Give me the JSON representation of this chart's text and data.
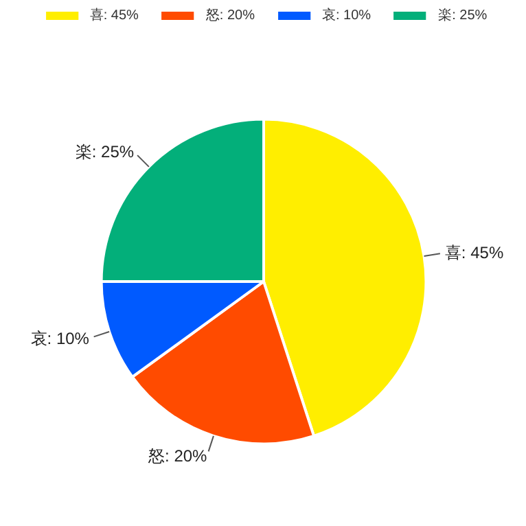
{
  "chart_data": {
    "type": "pie",
    "categories": [
      "喜: 45%",
      "怒: 20%",
      "哀: 10%",
      "楽: 25%"
    ],
    "values": [
      45,
      20,
      10,
      25
    ],
    "colors": [
      "#ffee00",
      "#ff4b00",
      "#005aff",
      "#03af7a"
    ],
    "legend": "top"
  }
}
